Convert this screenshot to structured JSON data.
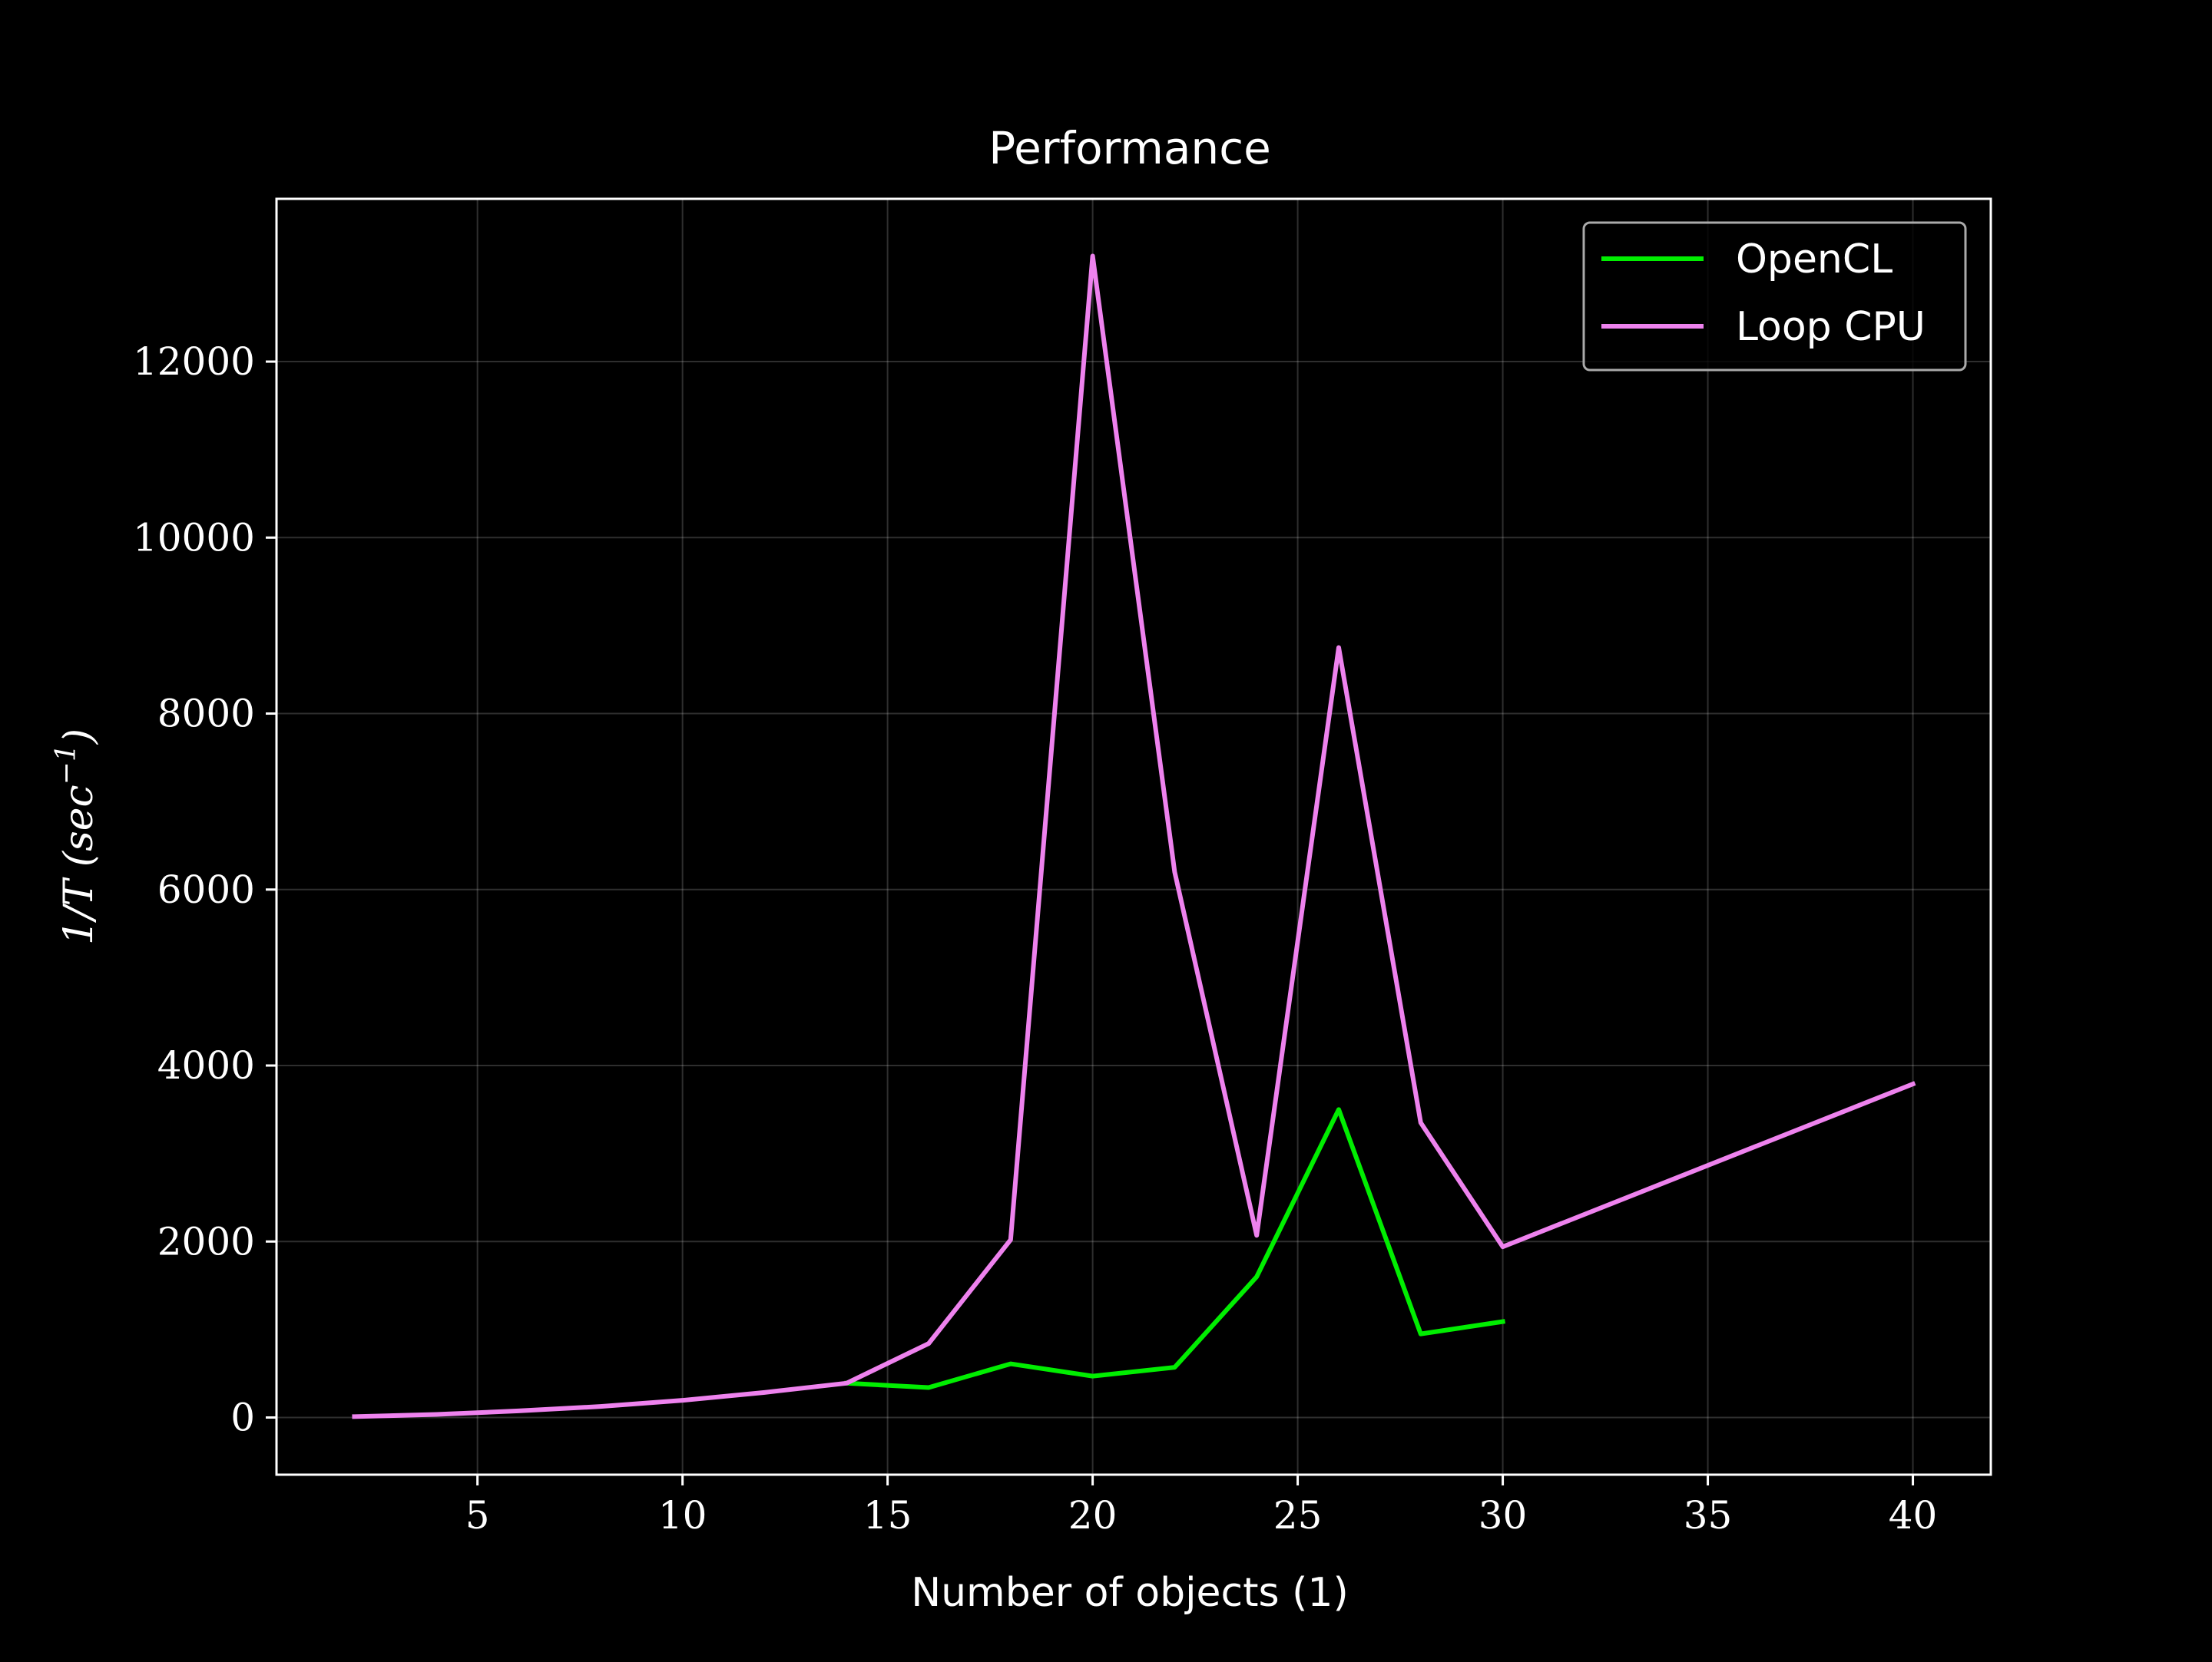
{
  "chart_data": {
    "type": "line",
    "title": "Performance",
    "xlabel": "Number of objects (1)",
    "ylabel": "1/T   (sec",
    "ylabel_superscript": "−1",
    "ylabel_close": ")",
    "xlim": [
      0.1,
      41.9
    ],
    "ylim": [
      -650,
      13850
    ],
    "xticks": [
      5,
      10,
      15,
      20,
      25,
      30,
      35,
      40
    ],
    "yticks": [
      0,
      2000,
      4000,
      6000,
      8000,
      10000,
      12000
    ],
    "grid": true,
    "legend_position": "top-right",
    "background": "#000000",
    "foreground": "#ffffff",
    "series": [
      {
        "name": "OpenCL",
        "color": "#00ee00",
        "x": [
          14,
          16,
          18,
          20,
          22,
          24,
          26,
          28,
          30
        ],
        "y": [
          390,
          340,
          610,
          470,
          570,
          1600,
          3500,
          950,
          1090
        ]
      },
      {
        "name": "Loop CPU",
        "color": "#ee82ee",
        "x": [
          2,
          4,
          6,
          8,
          10,
          12,
          14,
          16,
          18,
          20,
          22,
          24,
          26,
          28,
          30,
          40
        ],
        "y": [
          10,
          35,
          75,
          125,
          195,
          285,
          390,
          840,
          2020,
          13200,
          6200,
          2070,
          8750,
          3350,
          1940,
          3790
        ]
      }
    ]
  }
}
